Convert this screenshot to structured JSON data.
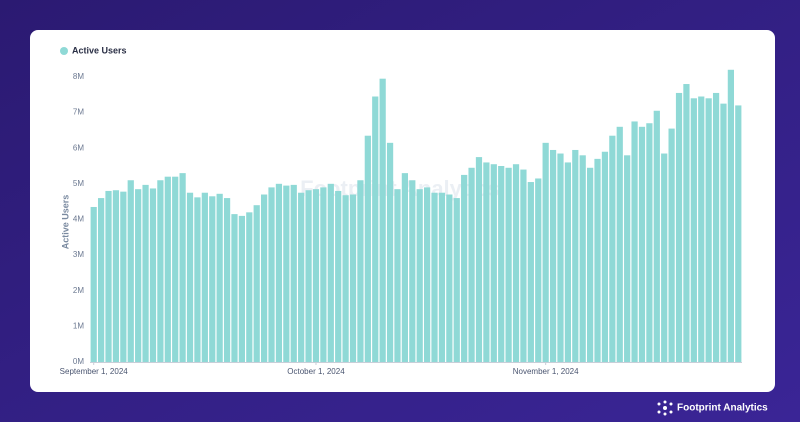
{
  "chart_data": {
    "type": "bar",
    "series": [
      {
        "name": "Active Users",
        "color": "#8fd9d6",
        "values": [
          4.35,
          4.6,
          4.8,
          4.82,
          4.78,
          5.1,
          4.85,
          4.97,
          4.87,
          5.1,
          5.2,
          5.2,
          5.3,
          4.75,
          4.62,
          4.75,
          4.65,
          4.72,
          4.6,
          4.15,
          4.1,
          4.2,
          4.4,
          4.7,
          4.9,
          5.0,
          4.95,
          4.97,
          4.75,
          4.82,
          4.85,
          4.9,
          5.0,
          4.8,
          4.68,
          4.7,
          5.1,
          6.35,
          7.45,
          7.95,
          6.15,
          4.85,
          5.3,
          5.1,
          4.85,
          4.9,
          4.75,
          4.75,
          4.7,
          4.6,
          5.25,
          5.45,
          5.75,
          5.6,
          5.55,
          5.5,
          5.45,
          5.55,
          5.4,
          5.05,
          5.15,
          6.15,
          5.95,
          5.85,
          5.6,
          5.95,
          5.8,
          5.45,
          5.7,
          5.9,
          6.35,
          6.6,
          5.8,
          6.75,
          6.6,
          6.7,
          7.05,
          5.85,
          6.55,
          7.55,
          7.8,
          7.4,
          7.45,
          7.4,
          7.55,
          7.25,
          8.2,
          7.2
        ]
      }
    ],
    "categories": [
      "September 1, 2024",
      null,
      null,
      null,
      null,
      null,
      null,
      null,
      null,
      null,
      null,
      null,
      null,
      null,
      null,
      null,
      null,
      null,
      null,
      null,
      null,
      null,
      null,
      null,
      null,
      null,
      null,
      null,
      null,
      null,
      "October 1, 2024",
      null,
      null,
      null,
      null,
      null,
      null,
      null,
      null,
      null,
      null,
      null,
      null,
      null,
      null,
      null,
      null,
      null,
      null,
      null,
      null,
      null,
      null,
      null,
      null,
      null,
      null,
      null,
      null,
      null,
      null,
      "November 1, 2024",
      null,
      null,
      null,
      null,
      null,
      null,
      null,
      null,
      null,
      null,
      null,
      null,
      null,
      null,
      null,
      null,
      null,
      null,
      null,
      null,
      null,
      null,
      null,
      null,
      null,
      null
    ],
    "ylabel": "Active Users",
    "ylim": [
      0,
      8.25
    ],
    "yticks": [
      {
        "value": 0,
        "label": "0M"
      },
      {
        "value": 1,
        "label": "1M"
      },
      {
        "value": 2,
        "label": "2M"
      },
      {
        "value": 3,
        "label": "3M"
      },
      {
        "value": 4,
        "label": "4M"
      },
      {
        "value": 5,
        "label": "5M"
      },
      {
        "value": 6,
        "label": "6M"
      },
      {
        "value": 7,
        "label": "7M"
      },
      {
        "value": 8,
        "label": "8M"
      }
    ],
    "grid": false,
    "legend": "top-left"
  },
  "watermark": "Footprint Analytics",
  "brand": "Footprint Analytics"
}
